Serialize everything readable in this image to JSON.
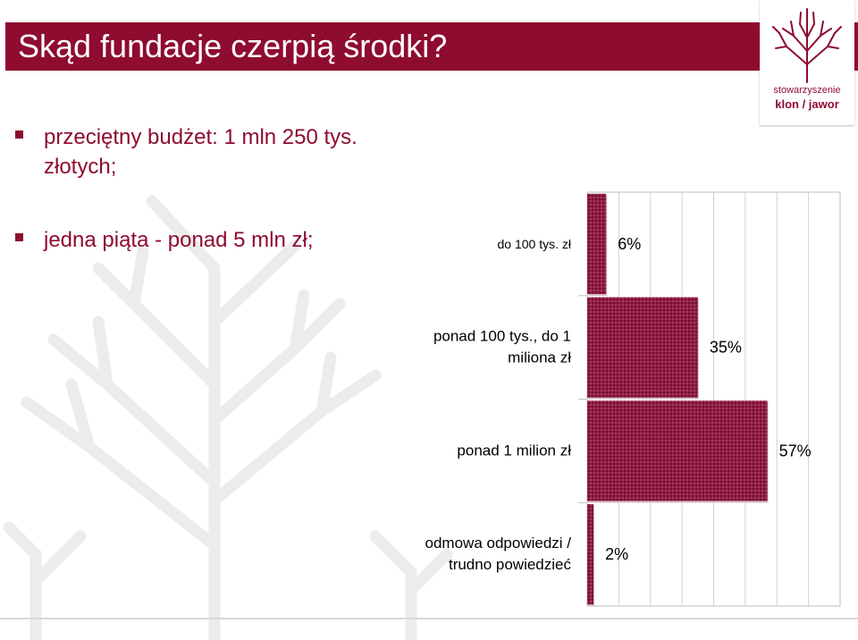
{
  "slide": {
    "title": "Skąd fundacje czerpią środki?",
    "bullets": [
      "przeciętny budżet: 1 mln 250 tys. złotych;",
      "jedna piąta - ponad 5 mln zł;"
    ]
  },
  "logo": {
    "line1": "stowarzyszenie",
    "line2": "klon / jawor",
    "icon": "tree-logo-icon"
  },
  "colors": {
    "accent": "#8e0c2f",
    "bar": "#8e1d45",
    "decor": "#e9e9e9"
  },
  "chart_data": {
    "type": "bar",
    "orientation": "horizontal",
    "categories": [
      "do 100 tys. zł",
      "ponad 100 tys., do 1 miliona zł",
      "ponad 1 milion zł",
      "odmowa odpowiedzi / trudno powiedzieć"
    ],
    "category_lines": [
      [
        "do 100 tys. zł"
      ],
      [
        "ponad 100 tys., do 1",
        "miliona zł"
      ],
      [
        "ponad 1 milion zł"
      ],
      [
        "odmowa odpowiedzi /",
        "trudno powiedzieć"
      ]
    ],
    "values": [
      6,
      35,
      57,
      2
    ],
    "value_labels": [
      "6%",
      "35%",
      "57%",
      "2%"
    ],
    "xlim": [
      0,
      80
    ],
    "grid": true,
    "title": "",
    "xlabel": "",
    "ylabel": ""
  }
}
